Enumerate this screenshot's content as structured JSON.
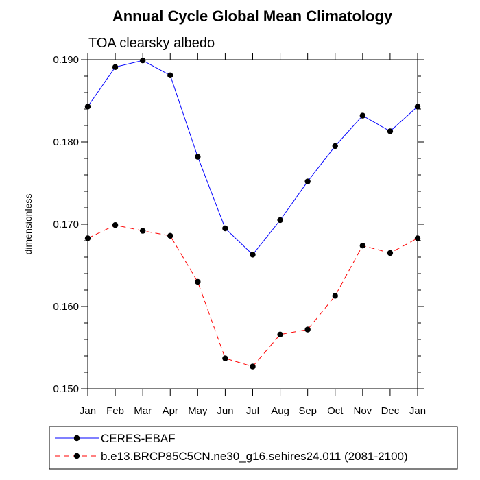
{
  "chart_data": {
    "type": "line",
    "title": "Annual Cycle Global Mean Climatology",
    "subtitle": "TOA clearsky albedo",
    "xlabel": "",
    "ylabel": "dimensionless",
    "categories": [
      "Jan",
      "Feb",
      "Mar",
      "Apr",
      "May",
      "Jun",
      "Jul",
      "Aug",
      "Sep",
      "Oct",
      "Nov",
      "Dec",
      "Jan"
    ],
    "ylim": [
      0.15,
      0.19
    ],
    "yticks": [
      0.15,
      0.16,
      0.17,
      0.18,
      0.19
    ],
    "ytick_labels": [
      "0.150",
      "0.160",
      "0.170",
      "0.180",
      "0.190"
    ],
    "grid": false,
    "legend_position": "bottom",
    "series": [
      {
        "name": "CERES-EBAF",
        "color": "#0000ff",
        "line_style": "solid",
        "marker": "circle",
        "values": [
          0.1843,
          0.1891,
          0.1899,
          0.1881,
          0.1782,
          0.1695,
          0.1663,
          0.1705,
          0.1752,
          0.1795,
          0.1832,
          0.1813,
          0.1843
        ]
      },
      {
        "name": "b.e13.BRCP85C5CN.ne30_g16.sehires24.011 (2081-2100)",
        "color": "#ff0000",
        "line_style": "dashed",
        "marker": "circle",
        "values": [
          0.1683,
          0.1699,
          0.1692,
          0.1686,
          0.163,
          0.1537,
          0.1527,
          0.1566,
          0.1572,
          0.1613,
          0.1674,
          0.1665,
          0.1683
        ]
      }
    ]
  }
}
